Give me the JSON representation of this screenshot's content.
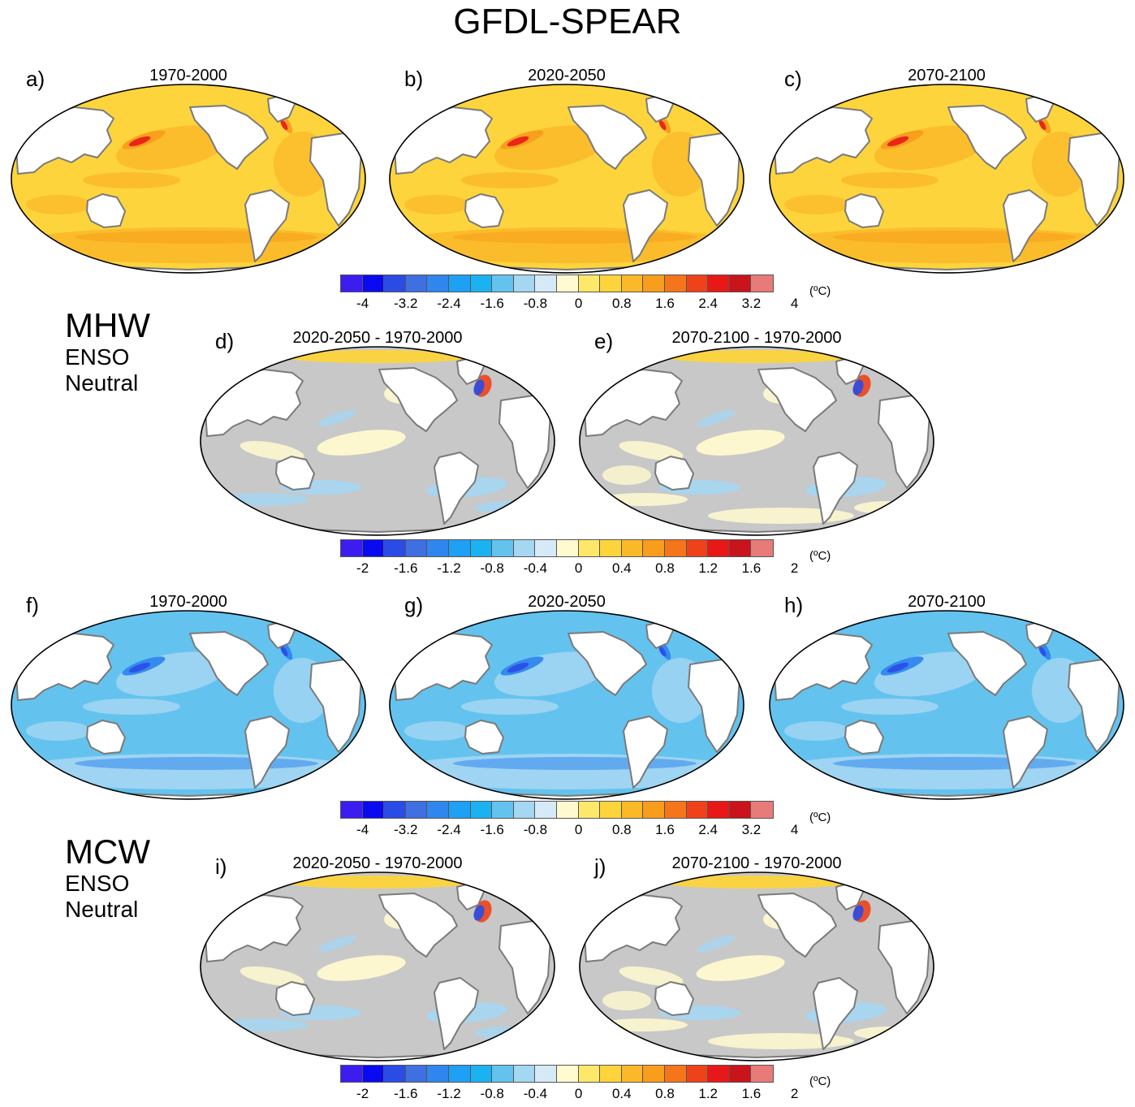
{
  "figure_title": "GFDL-SPEAR",
  "sections": [
    {
      "name": "MHW",
      "sub1": "ENSO",
      "sub2": "Neutral"
    },
    {
      "name": "MCW",
      "sub1": "ENSO",
      "sub2": "Neutral"
    }
  ],
  "panels": [
    {
      "label": "a)",
      "title": "1970-2000",
      "scheme": "warm"
    },
    {
      "label": "b)",
      "title": "2020-2050",
      "scheme": "warm"
    },
    {
      "label": "c)",
      "title": "2070-2100",
      "scheme": "warm"
    },
    {
      "label": "d)",
      "title": "2020-2050 - 1970-2000",
      "scheme": "diff"
    },
    {
      "label": "e)",
      "title": "2070-2100 - 1970-2000",
      "scheme": "diff"
    },
    {
      "label": "f)",
      "title": "1970-2000",
      "scheme": "cold"
    },
    {
      "label": "g)",
      "title": "2020-2050",
      "scheme": "cold"
    },
    {
      "label": "h)",
      "title": "2070-2100",
      "scheme": "cold"
    },
    {
      "label": "i)",
      "title": "2020-2050 - 1970-2000",
      "scheme": "diff"
    },
    {
      "label": "j)",
      "title": "2070-2100 - 1970-2000",
      "scheme": "diff"
    }
  ],
  "colorbars": [
    {
      "ticks": [
        "-4",
        "-3.2",
        "-2.4",
        "-1.6",
        "-0.8",
        "0",
        "0.8",
        "1.6",
        "2.4",
        "3.2",
        "4"
      ],
      "unit": "(ºC)"
    },
    {
      "ticks": [
        "-2",
        "-1.6",
        "-1.2",
        "-0.8",
        "-0.4",
        "0",
        "0.4",
        "0.8",
        "1.2",
        "1.6",
        "2"
      ],
      "unit": "(ºC)"
    },
    {
      "ticks": [
        "-4",
        "-3.2",
        "-2.4",
        "-1.6",
        "-0.8",
        "0",
        "0.8",
        "1.6",
        "2.4",
        "3.2",
        "4"
      ],
      "unit": "(ºC)"
    },
    {
      "ticks": [
        "-2",
        "-1.6",
        "-1.2",
        "-0.8",
        "-0.4",
        "0",
        "0.4",
        "0.8",
        "1.2",
        "1.6",
        "2"
      ],
      "unit": "(ºC)"
    }
  ],
  "palette": [
    "#3b1df0",
    "#0a0af0",
    "#2a4be6",
    "#3f6fe0",
    "#2f86ee",
    "#1ea0f4",
    "#1ab2f0",
    "#63c3ee",
    "#a5d6f2",
    "#d5eaf6",
    "#fffad0",
    "#fde86a",
    "#fdd43c",
    "#fbb92a",
    "#f89d1c",
    "#f5751a",
    "#f0421a",
    "#e81818",
    "#c8141a",
    "#e97a7a"
  ],
  "colors": {
    "land": "#ffffff",
    "coast": "#7a7a7a",
    "gray": "#c8c8c8"
  }
}
